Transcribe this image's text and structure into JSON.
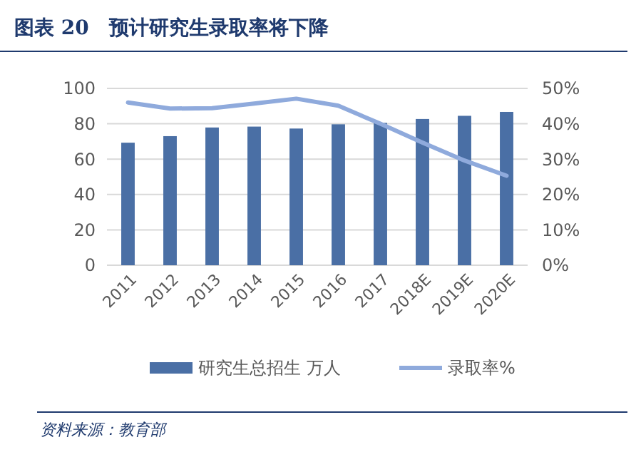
{
  "chart_data": {
    "type": "bar",
    "title": "图表 20　预计研究生录取率将下降",
    "categories": [
      "2011",
      "2012",
      "2013",
      "2014",
      "2015",
      "2016",
      "2017",
      "2018E",
      "2019E",
      "2020E"
    ],
    "series": [
      {
        "name": "研究生总招生 万人",
        "color": "#4a6fa5",
        "values": [
          69.3,
          73,
          77.9,
          78.4,
          77.3,
          79.7,
          80.5,
          82.7,
          84.5,
          86.7
        ]
      },
      {
        "name": "录取率%",
        "type": "line",
        "axis": "y2",
        "color": "#8faadc",
        "values": [
          46,
          44.3,
          44.4,
          45.7,
          47.1,
          45.1,
          40,
          34.7,
          29.6,
          25.3
        ]
      }
    ],
    "ylim": [
      0,
      100
    ],
    "yticks": [
      0,
      20,
      40,
      60,
      80,
      100
    ],
    "y2lim": [
      0,
      50
    ],
    "y2ticks": [
      {
        "value": 0,
        "label": "0%"
      },
      {
        "value": 10,
        "label": "10%"
      },
      {
        "value": 20,
        "label": "20%"
      },
      {
        "value": 30,
        "label": "30%"
      },
      {
        "value": 40,
        "label": "40%"
      },
      {
        "value": 50,
        "label": "50%"
      }
    ],
    "grid": "y",
    "legend": "bottom",
    "annotations": [
      "资料来源：教育部"
    ]
  }
}
